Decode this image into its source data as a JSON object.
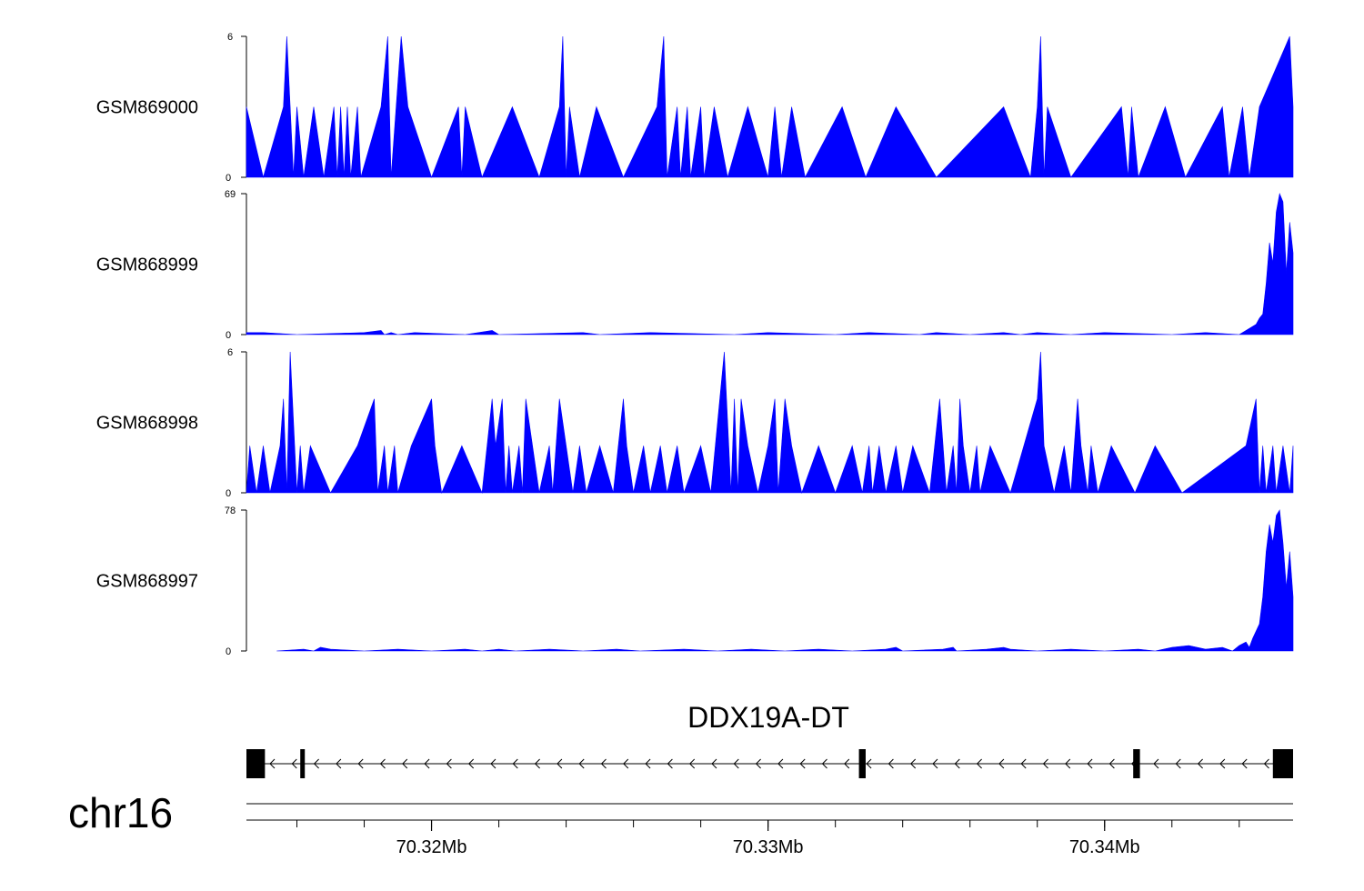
{
  "chart_data": {
    "type": "area",
    "chromosome": "chr16",
    "x_range_mb": [
      70.3145,
      70.3456
    ],
    "tracks": [
      {
        "name": "GSM869000",
        "ylim": [
          0,
          6
        ],
        "ytick_labels": [
          "6",
          "0"
        ],
        "points": [
          [
            70.3145,
            3
          ],
          [
            70.315,
            0
          ],
          [
            70.3156,
            3
          ],
          [
            70.3157,
            6
          ],
          [
            70.3158,
            3
          ],
          [
            70.3159,
            0
          ],
          [
            70.316,
            3
          ],
          [
            70.3162,
            0
          ],
          [
            70.3165,
            3
          ],
          [
            70.3168,
            0
          ],
          [
            70.3171,
            3
          ],
          [
            70.3172,
            0
          ],
          [
            70.3173,
            3
          ],
          [
            70.3174,
            0
          ],
          [
            70.3175,
            3
          ],
          [
            70.3176,
            0
          ],
          [
            70.3178,
            3
          ],
          [
            70.3179,
            0
          ],
          [
            70.3185,
            3
          ],
          [
            70.3187,
            6
          ],
          [
            70.3188,
            0
          ],
          [
            70.3191,
            6
          ],
          [
            70.3193,
            3
          ],
          [
            70.32,
            0
          ],
          [
            70.3208,
            3
          ],
          [
            70.3209,
            0
          ],
          [
            70.321,
            3
          ],
          [
            70.3215,
            0
          ],
          [
            70.3224,
            3
          ],
          [
            70.3232,
            0
          ],
          [
            70.3238,
            3
          ],
          [
            70.3239,
            6
          ],
          [
            70.324,
            0
          ],
          [
            70.3241,
            3
          ],
          [
            70.3244,
            0
          ],
          [
            70.3249,
            3
          ],
          [
            70.3257,
            0
          ],
          [
            70.3267,
            3
          ],
          [
            70.3269,
            6
          ],
          [
            70.327,
            0
          ],
          [
            70.3273,
            3
          ],
          [
            70.3274,
            0
          ],
          [
            70.3276,
            3
          ],
          [
            70.3277,
            0
          ],
          [
            70.328,
            3
          ],
          [
            70.3281,
            0
          ],
          [
            70.3284,
            3
          ],
          [
            70.3288,
            0
          ],
          [
            70.3294,
            3
          ],
          [
            70.33,
            0
          ],
          [
            70.3302,
            3
          ],
          [
            70.3304,
            0
          ],
          [
            70.3307,
            3
          ],
          [
            70.3311,
            0
          ],
          [
            70.3322,
            3
          ],
          [
            70.3329,
            0
          ],
          [
            70.3338,
            3
          ],
          [
            70.335,
            0
          ],
          [
            70.337,
            3
          ],
          [
            70.3378,
            0
          ],
          [
            70.338,
            3
          ],
          [
            70.3381,
            6
          ],
          [
            70.3382,
            0
          ],
          [
            70.3383,
            3
          ],
          [
            70.339,
            0
          ],
          [
            70.3405,
            3
          ],
          [
            70.3407,
            0
          ],
          [
            70.3408,
            3
          ],
          [
            70.341,
            0
          ],
          [
            70.3418,
            3
          ],
          [
            70.3424,
            0
          ],
          [
            70.3435,
            3
          ],
          [
            70.3437,
            0
          ],
          [
            70.3441,
            3
          ],
          [
            70.3443,
            0
          ],
          [
            70.3446,
            3
          ],
          [
            70.3455,
            6
          ],
          [
            70.3456,
            3
          ]
        ]
      },
      {
        "name": "GSM868999",
        "ylim": [
          0,
          69
        ],
        "ytick_labels": [
          "69",
          "0"
        ],
        "points": [
          [
            70.3145,
            1
          ],
          [
            70.315,
            1
          ],
          [
            70.316,
            0
          ],
          [
            70.318,
            1
          ],
          [
            70.3185,
            2
          ],
          [
            70.3186,
            0
          ],
          [
            70.3188,
            1
          ],
          [
            70.319,
            0
          ],
          [
            70.3195,
            1
          ],
          [
            70.321,
            0
          ],
          [
            70.3218,
            2
          ],
          [
            70.322,
            0
          ],
          [
            70.3245,
            1
          ],
          [
            70.325,
            0
          ],
          [
            70.3265,
            1
          ],
          [
            70.329,
            0
          ],
          [
            70.33,
            1
          ],
          [
            70.332,
            0
          ],
          [
            70.333,
            1
          ],
          [
            70.3345,
            0
          ],
          [
            70.335,
            1
          ],
          [
            70.336,
            0
          ],
          [
            70.337,
            1
          ],
          [
            70.3375,
            0
          ],
          [
            70.338,
            1
          ],
          [
            70.339,
            0
          ],
          [
            70.34,
            1
          ],
          [
            70.342,
            0
          ],
          [
            70.343,
            1
          ],
          [
            70.344,
            0
          ],
          [
            70.3445,
            5
          ],
          [
            70.3446,
            8
          ],
          [
            70.3447,
            10
          ],
          [
            70.3448,
            25
          ],
          [
            70.3449,
            45
          ],
          [
            70.345,
            35
          ],
          [
            70.3451,
            60
          ],
          [
            70.3452,
            69
          ],
          [
            70.3453,
            65
          ],
          [
            70.3454,
            30
          ],
          [
            70.3455,
            55
          ],
          [
            70.3456,
            40
          ]
        ]
      },
      {
        "name": "GSM868998",
        "ylim": [
          0,
          6
        ],
        "ytick_labels": [
          "6",
          "0"
        ],
        "points": [
          [
            70.3145,
            0
          ],
          [
            70.3146,
            2
          ],
          [
            70.3148,
            0
          ],
          [
            70.315,
            2
          ],
          [
            70.3152,
            0
          ],
          [
            70.3155,
            2
          ],
          [
            70.3156,
            4
          ],
          [
            70.3157,
            0
          ],
          [
            70.3158,
            6
          ],
          [
            70.316,
            0
          ],
          [
            70.3161,
            2
          ],
          [
            70.3162,
            0
          ],
          [
            70.3164,
            2
          ],
          [
            70.317,
            0
          ],
          [
            70.3178,
            2
          ],
          [
            70.3183,
            4
          ],
          [
            70.3184,
            0
          ],
          [
            70.3186,
            2
          ],
          [
            70.3187,
            0
          ],
          [
            70.3189,
            2
          ],
          [
            70.319,
            0
          ],
          [
            70.3194,
            2
          ],
          [
            70.32,
            4
          ],
          [
            70.3201,
            2
          ],
          [
            70.3203,
            0
          ],
          [
            70.3209,
            2
          ],
          [
            70.3215,
            0
          ],
          [
            70.3218,
            4
          ],
          [
            70.3219,
            2
          ],
          [
            70.3221,
            4
          ],
          [
            70.3222,
            0
          ],
          [
            70.3223,
            2
          ],
          [
            70.3224,
            0
          ],
          [
            70.3226,
            2
          ],
          [
            70.3227,
            0
          ],
          [
            70.3228,
            4
          ],
          [
            70.323,
            2
          ],
          [
            70.3232,
            0
          ],
          [
            70.3235,
            2
          ],
          [
            70.3236,
            0
          ],
          [
            70.3238,
            4
          ],
          [
            70.324,
            2
          ],
          [
            70.3242,
            0
          ],
          [
            70.3244,
            2
          ],
          [
            70.3246,
            0
          ],
          [
            70.325,
            2
          ],
          [
            70.3254,
            0
          ],
          [
            70.3257,
            4
          ],
          [
            70.3258,
            2
          ],
          [
            70.326,
            0
          ],
          [
            70.3263,
            2
          ],
          [
            70.3265,
            0
          ],
          [
            70.3268,
            2
          ],
          [
            70.327,
            0
          ],
          [
            70.3273,
            2
          ],
          [
            70.3275,
            0
          ],
          [
            70.328,
            2
          ],
          [
            70.3283,
            0
          ],
          [
            70.3287,
            6
          ],
          [
            70.3289,
            0
          ],
          [
            70.329,
            4
          ],
          [
            70.3291,
            0
          ],
          [
            70.3292,
            4
          ],
          [
            70.3294,
            2
          ],
          [
            70.3297,
            0
          ],
          [
            70.33,
            2
          ],
          [
            70.3302,
            4
          ],
          [
            70.3303,
            0
          ],
          [
            70.3305,
            4
          ],
          [
            70.3307,
            2
          ],
          [
            70.331,
            0
          ],
          [
            70.3315,
            2
          ],
          [
            70.332,
            0
          ],
          [
            70.3325,
            2
          ],
          [
            70.3328,
            0
          ],
          [
            70.333,
            2
          ],
          [
            70.3331,
            0
          ],
          [
            70.3333,
            2
          ],
          [
            70.3335,
            0
          ],
          [
            70.3338,
            2
          ],
          [
            70.334,
            0
          ],
          [
            70.3343,
            2
          ],
          [
            70.3348,
            0
          ],
          [
            70.3351,
            4
          ],
          [
            70.3352,
            2
          ],
          [
            70.3353,
            0
          ],
          [
            70.3355,
            2
          ],
          [
            70.3356,
            0
          ],
          [
            70.3357,
            4
          ],
          [
            70.3358,
            2
          ],
          [
            70.336,
            0
          ],
          [
            70.3362,
            2
          ],
          [
            70.3363,
            0
          ],
          [
            70.3366,
            2
          ],
          [
            70.3372,
            0
          ],
          [
            70.338,
            4
          ],
          [
            70.3381,
            6
          ],
          [
            70.3382,
            2
          ],
          [
            70.3385,
            0
          ],
          [
            70.3388,
            2
          ],
          [
            70.339,
            0
          ],
          [
            70.3392,
            4
          ],
          [
            70.3393,
            2
          ],
          [
            70.3395,
            0
          ],
          [
            70.3396,
            2
          ],
          [
            70.3398,
            0
          ],
          [
            70.3402,
            2
          ],
          [
            70.3409,
            0
          ],
          [
            70.3415,
            2
          ],
          [
            70.3423,
            0
          ],
          [
            70.3442,
            2
          ],
          [
            70.3445,
            4
          ],
          [
            70.3446,
            0
          ],
          [
            70.3447,
            2
          ],
          [
            70.3448,
            0
          ],
          [
            70.345,
            2
          ],
          [
            70.3451,
            0
          ],
          [
            70.3453,
            2
          ],
          [
            70.3455,
            0
          ],
          [
            70.3456,
            2
          ]
        ]
      },
      {
        "name": "GSM868997",
        "ylim": [
          0,
          78
        ],
        "ytick_labels": [
          "78",
          "0"
        ],
        "points": [
          [
            70.3154,
            0
          ],
          [
            70.3162,
            1
          ],
          [
            70.3165,
            0
          ],
          [
            70.3167,
            2
          ],
          [
            70.317,
            1
          ],
          [
            70.318,
            0
          ],
          [
            70.319,
            1
          ],
          [
            70.32,
            0
          ],
          [
            70.321,
            1
          ],
          [
            70.3215,
            0
          ],
          [
            70.322,
            1
          ],
          [
            70.3225,
            0
          ],
          [
            70.3235,
            1
          ],
          [
            70.3245,
            0
          ],
          [
            70.3255,
            1
          ],
          [
            70.3262,
            0
          ],
          [
            70.3275,
            1
          ],
          [
            70.3285,
            0
          ],
          [
            70.3295,
            1
          ],
          [
            70.3305,
            0
          ],
          [
            70.3315,
            1
          ],
          [
            70.3325,
            0
          ],
          [
            70.3335,
            1
          ],
          [
            70.3338,
            2
          ],
          [
            70.334,
            0
          ],
          [
            70.3352,
            1
          ],
          [
            70.3355,
            2
          ],
          [
            70.3356,
            0
          ],
          [
            70.3365,
            1
          ],
          [
            70.337,
            2
          ],
          [
            70.3372,
            1
          ],
          [
            70.338,
            0
          ],
          [
            70.339,
            1
          ],
          [
            70.34,
            0
          ],
          [
            70.341,
            1
          ],
          [
            70.3415,
            0
          ],
          [
            70.342,
            2
          ],
          [
            70.3425,
            3
          ],
          [
            70.343,
            1
          ],
          [
            70.3435,
            2
          ],
          [
            70.3438,
            0
          ],
          [
            70.344,
            3
          ],
          [
            70.3442,
            5
          ],
          [
            70.3443,
            2
          ],
          [
            70.3444,
            7
          ],
          [
            70.3446,
            15
          ],
          [
            70.3447,
            30
          ],
          [
            70.3448,
            55
          ],
          [
            70.3449,
            70
          ],
          [
            70.345,
            60
          ],
          [
            70.3451,
            75
          ],
          [
            70.3452,
            78
          ],
          [
            70.3453,
            60
          ],
          [
            70.3454,
            35
          ],
          [
            70.3455,
            55
          ],
          [
            70.3456,
            30
          ]
        ]
      }
    ],
    "gene": {
      "name": "DDX19A-DT",
      "strand": "-",
      "start_mb": 70.3145,
      "end_mb": 70.3456,
      "exons": [
        [
          70.3145,
          70.31505
        ],
        [
          70.3161,
          70.3162
        ],
        [
          70.3327,
          70.3329
        ],
        [
          70.34085,
          70.34105
        ],
        [
          70.345,
          70.3456
        ]
      ]
    },
    "axis": {
      "major_ticks_mb": [
        70.32,
        70.33,
        70.34
      ],
      "tick_labels": [
        "70.32Mb",
        "70.33Mb",
        "70.34Mb"
      ],
      "minor_tick_step_mb": 0.002
    }
  },
  "colors": {
    "signal": "#0000ff",
    "line": "#000000",
    "background": "#ffffff"
  }
}
